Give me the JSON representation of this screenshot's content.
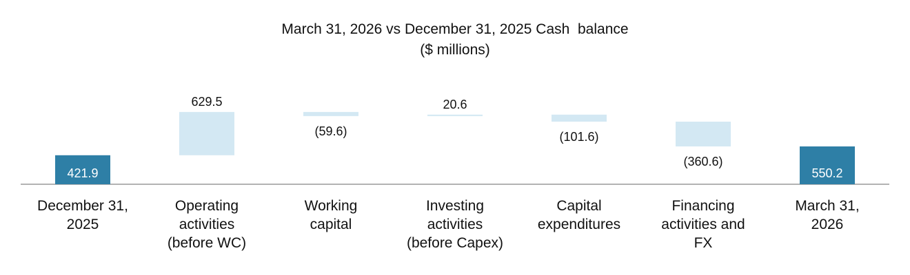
{
  "chart_data": {
    "type": "bar",
    "subtype": "waterfall",
    "title": "March 31, 2026 vs December 31, 2025 Cash  balance",
    "subtitle": "($ millions)",
    "categories": [
      "December 31, 2025",
      "Operating activities (before WC)",
      "Working capital",
      "Investing activities (before Capex)",
      "Capital expenditures",
      "Financing activities and FX",
      "March 31, 2026"
    ],
    "category_lines": [
      [
        "December 31,",
        "2025"
      ],
      [
        "Operating",
        "activities",
        "(before WC)"
      ],
      [
        "Working",
        "capital"
      ],
      [
        "Investing",
        "activities",
        "(before Capex)"
      ],
      [
        "Capital",
        "expenditures"
      ],
      [
        "Financing",
        "activities and",
        "FX"
      ],
      [
        "March 31,",
        "2026"
      ]
    ],
    "values": [
      421.9,
      629.5,
      -59.6,
      20.6,
      -101.6,
      -360.6,
      550.2
    ],
    "value_labels": [
      "421.9",
      "629.5",
      "(59.6)",
      "20.6",
      "(101.6)",
      "(360.6)",
      "550.2"
    ],
    "bar_kinds": [
      "total",
      "change",
      "change",
      "change",
      "change",
      "change",
      "total"
    ],
    "colors": {
      "total": "#2e7fa6",
      "change": "#d3e8f3",
      "axis": "#999999",
      "total_label": "#ffffff",
      "change_label": "#111111"
    },
    "legend": "none",
    "grid": false
  }
}
